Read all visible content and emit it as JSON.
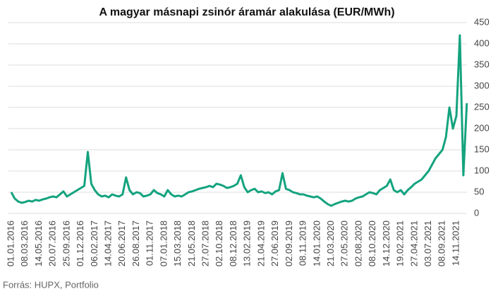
{
  "chart_data": {
    "type": "line",
    "title": "A magyar másnapi zsinór áramár alakulása (EUR/MWh)",
    "source": "Forrás: HUPX, Portfolio",
    "categories": [
      "01.01.2016",
      null,
      null,
      null,
      "08.03.2016",
      null,
      null,
      null,
      "14.05.2016",
      null,
      null,
      null,
      "20.07.2016",
      null,
      null,
      null,
      "25.09.2016",
      null,
      null,
      null,
      "01.12.2016",
      null,
      null,
      null,
      "06.02.2017",
      null,
      null,
      null,
      "14.04.2017",
      null,
      null,
      null,
      "20.06.2017",
      null,
      null,
      null,
      "26.08.2017",
      null,
      null,
      null,
      "01.11.2017",
      null,
      null,
      null,
      "07.01.2018",
      null,
      null,
      null,
      "15.03.2018",
      null,
      null,
      null,
      "21.05.2018",
      null,
      null,
      null,
      "27.07.2018",
      null,
      null,
      null,
      "02.10.2018",
      null,
      null,
      null,
      "08.12.2018",
      null,
      null,
      null,
      "13.02.2019",
      null,
      null,
      null,
      "21.04.2019",
      null,
      null,
      null,
      "27.06.2019",
      null,
      null,
      null,
      "02.09.2019",
      null,
      null,
      null,
      "08.11.2019",
      null,
      null,
      null,
      "14.01.2020",
      null,
      null,
      null,
      "21.03.2020",
      null,
      null,
      null,
      "27.05.2020",
      null,
      null,
      null,
      "02.08.2020",
      null,
      null,
      null,
      "08.10.2020",
      null,
      null,
      null,
      "14.12.2020",
      null,
      null,
      null,
      "19.02.2021",
      null,
      null,
      null,
      "27.04.2021",
      null,
      null,
      null,
      "03.07.2021",
      null,
      null,
      null,
      "08.09.2021",
      null,
      null,
      null,
      "14.11.2021",
      null,
      null,
      null
    ],
    "values": [
      50,
      35,
      28,
      25,
      27,
      30,
      28,
      32,
      30,
      33,
      35,
      38,
      40,
      38,
      45,
      52,
      40,
      45,
      50,
      55,
      60,
      65,
      145,
      70,
      55,
      45,
      40,
      42,
      38,
      45,
      42,
      40,
      45,
      85,
      55,
      45,
      50,
      48,
      40,
      42,
      45,
      55,
      48,
      45,
      40,
      55,
      45,
      40,
      42,
      40,
      45,
      50,
      52,
      55,
      58,
      60,
      62,
      65,
      62,
      70,
      68,
      65,
      60,
      62,
      65,
      70,
      90,
      62,
      50,
      55,
      58,
      50,
      52,
      48,
      50,
      45,
      52,
      55,
      95,
      58,
      55,
      50,
      48,
      45,
      45,
      42,
      40,
      38,
      40,
      35,
      28,
      22,
      18,
      22,
      25,
      28,
      30,
      28,
      30,
      35,
      38,
      40,
      45,
      50,
      48,
      45,
      55,
      60,
      65,
      80,
      55,
      50,
      55,
      45,
      55,
      62,
      70,
      75,
      80,
      90,
      100,
      115,
      130,
      140,
      150,
      180,
      250,
      200,
      230,
      420,
      90,
      260
    ],
    "color": "#14a37f",
    "ylim": [
      0,
      450
    ],
    "yticks": [
      0,
      50,
      100,
      150,
      200,
      250,
      300,
      350,
      400,
      450
    ],
    "grid": true
  }
}
